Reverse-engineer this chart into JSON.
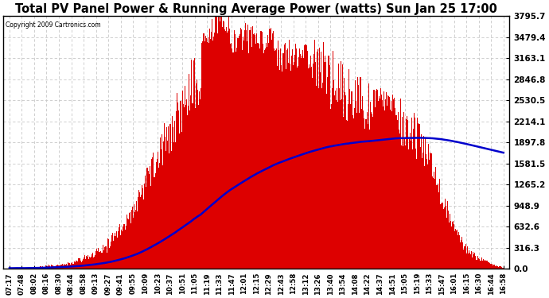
{
  "title": "Total PV Panel Power & Running Average Power (watts) Sun Jan 25 17:00",
  "copyright": "Copyright 2009 Cartronics.com",
  "background_color": "#ffffff",
  "plot_bg_color": "#ffffff",
  "grid_color": "#c8c8c8",
  "bar_color": "#dd0000",
  "line_color": "#0000cc",
  "ytick_labels": [
    "0.0",
    "316.3",
    "632.6",
    "948.9",
    "1265.2",
    "1581.5",
    "1897.8",
    "2214.1",
    "2530.5",
    "2846.8",
    "3163.1",
    "3479.4",
    "3795.7"
  ],
  "ytick_values": [
    0.0,
    316.3,
    632.6,
    948.9,
    1265.2,
    1581.5,
    1897.8,
    2214.1,
    2530.5,
    2846.8,
    3163.1,
    3479.4,
    3795.7
  ],
  "ymax": 3795.7,
  "xtick_labels": [
    "07:17",
    "07:48",
    "08:02",
    "08:16",
    "08:30",
    "08:44",
    "08:58",
    "09:13",
    "09:27",
    "09:41",
    "09:55",
    "10:09",
    "10:23",
    "10:37",
    "10:51",
    "11:05",
    "11:19",
    "11:33",
    "11:47",
    "12:01",
    "12:15",
    "12:29",
    "12:43",
    "12:58",
    "13:12",
    "13:26",
    "13:40",
    "13:54",
    "14:08",
    "14:22",
    "14:37",
    "14:51",
    "15:05",
    "15:19",
    "15:33",
    "15:47",
    "16:01",
    "16:15",
    "16:30",
    "16:44",
    "16:58"
  ]
}
